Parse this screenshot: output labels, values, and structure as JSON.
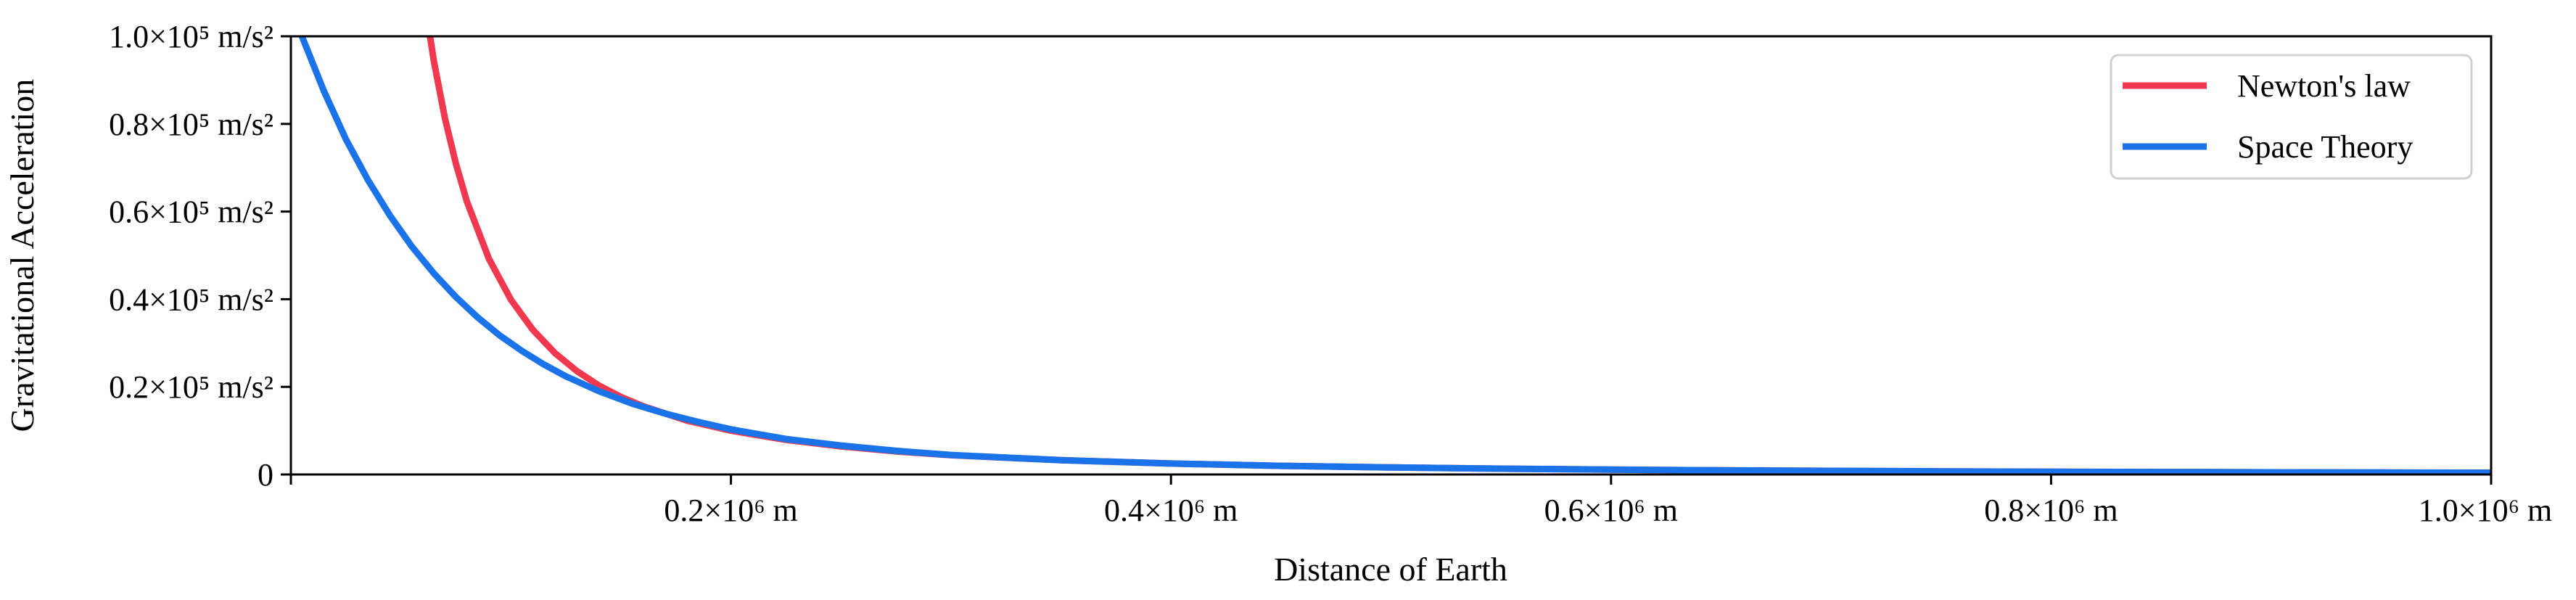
{
  "chart_data": {
    "type": "line",
    "title": "",
    "xlabel": "Distance of Earth",
    "ylabel": "Gravitational Acceleration",
    "xlim": [
      0,
      1000000
    ],
    "ylim": [
      0,
      100000
    ],
    "x_ticks": [
      {
        "value": 200000,
        "label": "0.2×10⁶ m"
      },
      {
        "value": 400000,
        "label": "0.4×10⁶ m"
      },
      {
        "value": 600000,
        "label": "0.6×10⁶ m"
      },
      {
        "value": 800000,
        "label": "0.8×10⁶ m"
      },
      {
        "value": 1000000,
        "label": "1.0×10⁶ m"
      }
    ],
    "y_ticks": [
      {
        "value": 0,
        "label": "0"
      },
      {
        "value": 20000,
        "label": "0.2×10⁵ m/s²"
      },
      {
        "value": 40000,
        "label": "0.4×10⁵ m/s²"
      },
      {
        "value": 60000,
        "label": "0.6×10⁵ m/s²"
      },
      {
        "value": 80000,
        "label": "0.8×10⁵ m/s²"
      },
      {
        "value": 100000,
        "label": "1.0×10⁵ m/s²"
      }
    ],
    "grid": false,
    "legend_position": "top-right",
    "series": [
      {
        "name": "Newton's law",
        "color": "#f0394e",
        "points": [
          [
            62000,
            104000
          ],
          [
            65000,
            94300
          ],
          [
            70000,
            81300
          ],
          [
            75000,
            70900
          ],
          [
            80000,
            62300
          ],
          [
            90000,
            49200
          ],
          [
            100000,
            39900
          ],
          [
            110000,
            33000
          ],
          [
            120000,
            27700
          ],
          [
            130000,
            23600
          ],
          [
            140000,
            20300
          ],
          [
            150000,
            17700
          ],
          [
            160000,
            15600
          ],
          [
            180000,
            12300
          ],
          [
            200000,
            10000
          ],
          [
            225000,
            7900
          ],
          [
            250000,
            6400
          ],
          [
            275000,
            5270
          ],
          [
            300000,
            4400
          ],
          [
            350000,
            3260
          ],
          [
            400000,
            2500
          ],
          [
            450000,
            1970
          ],
          [
            500000,
            1600
          ],
          [
            550000,
            1320
          ],
          [
            600000,
            1110
          ],
          [
            650000,
            950
          ],
          [
            700000,
            820
          ],
          [
            750000,
            710
          ],
          [
            800000,
            630
          ],
          [
            850000,
            560
          ],
          [
            900000,
            490
          ],
          [
            950000,
            440
          ],
          [
            1000000,
            400
          ]
        ]
      },
      {
        "name": "Space Theory",
        "color": "#1a73e8",
        "points": [
          [
            5000,
            100000
          ],
          [
            15000,
            87500
          ],
          [
            25000,
            76500
          ],
          [
            35000,
            67200
          ],
          [
            45000,
            59100
          ],
          [
            55000,
            52000
          ],
          [
            65000,
            45900
          ],
          [
            75000,
            40500
          ],
          [
            85000,
            35800
          ],
          [
            95000,
            31700
          ],
          [
            105000,
            28200
          ],
          [
            115000,
            25100
          ],
          [
            125000,
            22400
          ],
          [
            140000,
            19000
          ],
          [
            155000,
            16200
          ],
          [
            170000,
            13900
          ],
          [
            185000,
            12000
          ],
          [
            200000,
            10300
          ],
          [
            225000,
            8100
          ],
          [
            250000,
            6600
          ],
          [
            275000,
            5400
          ],
          [
            300000,
            4450
          ],
          [
            350000,
            3260
          ],
          [
            400000,
            2500
          ],
          [
            450000,
            1970
          ],
          [
            500000,
            1600
          ],
          [
            550000,
            1320
          ],
          [
            600000,
            1110
          ],
          [
            650000,
            950
          ],
          [
            700000,
            820
          ],
          [
            750000,
            710
          ],
          [
            800000,
            630
          ],
          [
            850000,
            560
          ],
          [
            900000,
            490
          ],
          [
            950000,
            440
          ],
          [
            1000000,
            400
          ]
        ]
      }
    ]
  }
}
